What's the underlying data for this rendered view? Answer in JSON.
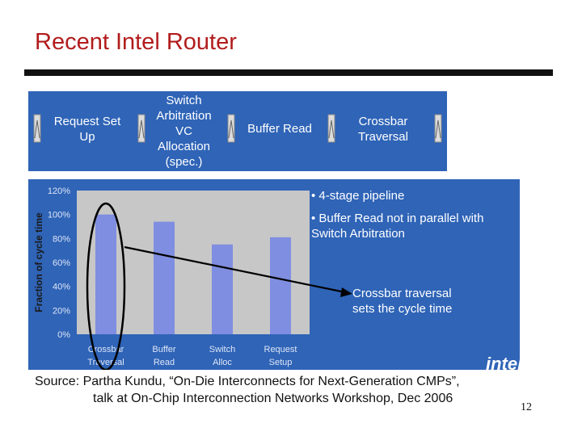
{
  "slide": {
    "title": "Recent Intel Router",
    "page_number": "12",
    "source_line1": "Source: Partha Kundu, “On-Die Interconnects for Next-Generation CMPs”,",
    "source_line2": "talk at On-Chip Interconnection Networks Workshop, Dec 2006"
  },
  "pipeline_stages": [
    "Request Set\nUp",
    "Switch\nArbitration\nVC\nAllocation\n(spec.)",
    "Buffer Read",
    "Crossbar\nTraversal"
  ],
  "bullets": [
    "• 4-stage pipeline",
    "• Buffer Read not in parallel with\nSwitch Arbitration"
  ],
  "callout": "Crossbar traversal\nsets the cycle time",
  "colors": {
    "title": "#b21c1c",
    "panel": "#2f64b7",
    "plot_bg": "#c7c7c7",
    "bar": "#7f8ee0"
  },
  "chart_data": {
    "type": "bar",
    "categories": [
      "Crossbar\nTraversal",
      "Buffer\nRead",
      "Switch\nAlloc",
      "Request\nSetup"
    ],
    "values": [
      100,
      94,
      75,
      81
    ],
    "ylabel": "Fraction of cycle time",
    "ylim": [
      0,
      120
    ],
    "yticks": [
      "0%",
      "20%",
      "40%",
      "60%",
      "80%",
      "100%",
      "120%"
    ],
    "ytick_values": [
      0,
      20,
      40,
      60,
      80,
      100,
      120
    ],
    "grid": false,
    "highlighted_category": "Crossbar\nTraversal"
  }
}
